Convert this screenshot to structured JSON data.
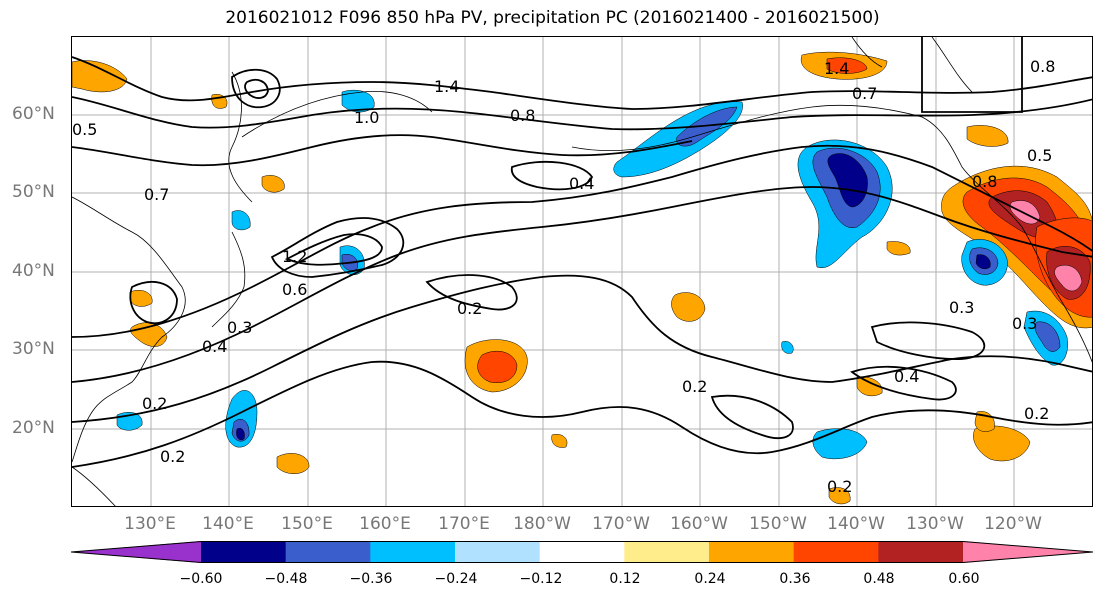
{
  "title": "2016021012 F096 850 hPa PV, precipitation PC (2016021400 - 2016021500)",
  "lat_labels": [
    "60°N",
    "50°N",
    "40°N",
    "30°N",
    "20°N"
  ],
  "lon_labels": [
    "130°E",
    "140°E",
    "150°E",
    "160°E",
    "170°E",
    "180°W",
    "170°W",
    "160°W",
    "150°W",
    "140°W",
    "130°W",
    "120°W"
  ],
  "contour_labels": [
    "1.4",
    "1.4",
    "1.0",
    "0.8",
    "0.8",
    "0.7",
    "0.7",
    "0.5",
    "0.4",
    "0.4",
    "0.2",
    "0.2",
    "0.2",
    "0.2",
    "0.2",
    "0.3",
    "0.3",
    "0.4",
    "0.6",
    "0.8",
    "1.2",
    "0.5",
    "0.3",
    "0.2"
  ],
  "colorbar": {
    "ticks": [
      "−0.60",
      "−0.48",
      "−0.36",
      "−0.24",
      "−0.12",
      "0.12",
      "0.24",
      "0.36",
      "0.48",
      "0.60"
    ],
    "colors": [
      "#9932cc",
      "#00008b",
      "#3a5fcd",
      "#00bfff",
      "#b0e2ff",
      "#ffffff",
      "#ffec8b",
      "#ffa500",
      "#ff4500",
      "#b22222",
      "#ff82ab"
    ]
  }
}
